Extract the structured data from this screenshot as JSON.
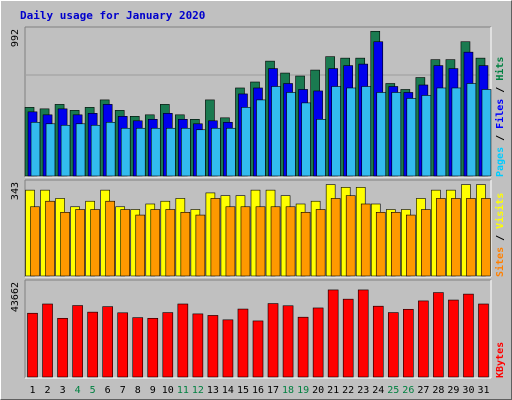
{
  "title": "Daily usage for January 2020",
  "chart_data": [
    {
      "type": "bar",
      "categories": [
        "1",
        "2",
        "3",
        "4",
        "5",
        "6",
        "7",
        "8",
        "9",
        "10",
        "11",
        "12",
        "13",
        "14",
        "15",
        "16",
        "17",
        "18",
        "19",
        "20",
        "21",
        "22",
        "23",
        "24",
        "25",
        "26",
        "27",
        "28",
        "29",
        "30",
        "31"
      ],
      "weekend_days": [
        "4",
        "5",
        "11",
        "12",
        "18",
        "19",
        "25",
        "26"
      ],
      "ymax_label": "992",
      "ylim": [
        0,
        992
      ],
      "legend": [
        {
          "name": "Pages",
          "color": "#00ccff"
        },
        {
          "name": "Files",
          "color": "#0000ff"
        },
        {
          "name": "Hits",
          "color": "#008040"
        }
      ],
      "series": [
        {
          "name": "Hits",
          "color": "#1a7a50",
          "values": [
            460,
            450,
            480,
            440,
            460,
            510,
            440,
            400,
            410,
            480,
            410,
            380,
            510,
            390,
            590,
            630,
            770,
            690,
            670,
            710,
            800,
            790,
            790,
            970,
            620,
            580,
            660,
            780,
            780,
            900,
            790
          ]
        },
        {
          "name": "Files",
          "color": "#0000ee",
          "values": [
            430,
            410,
            450,
            410,
            420,
            480,
            400,
            370,
            380,
            420,
            380,
            350,
            370,
            360,
            550,
            590,
            720,
            620,
            580,
            570,
            720,
            740,
            750,
            900,
            600,
            560,
            610,
            740,
            720,
            830,
            740
          ]
        },
        {
          "name": "Pages",
          "color": "#33bbee",
          "values": [
            360,
            350,
            340,
            350,
            340,
            360,
            320,
            320,
            320,
            320,
            320,
            310,
            320,
            320,
            460,
            510,
            600,
            560,
            490,
            380,
            600,
            590,
            600,
            560,
            560,
            520,
            540,
            590,
            590,
            620,
            580
          ]
        }
      ]
    },
    {
      "type": "bar",
      "categories": [
        "1",
        "2",
        "3",
        "4",
        "5",
        "6",
        "7",
        "8",
        "9",
        "10",
        "11",
        "12",
        "13",
        "14",
        "15",
        "16",
        "17",
        "18",
        "19",
        "20",
        "21",
        "22",
        "23",
        "24",
        "25",
        "26",
        "27",
        "28",
        "29",
        "30",
        "31"
      ],
      "ymax_label": "343",
      "ylim": [
        0,
        343
      ],
      "legend": [
        {
          "name": "Sites",
          "color": "#ff8000"
        },
        {
          "name": "Visits",
          "color": "#ffff00"
        }
      ],
      "series": [
        {
          "name": "Visits",
          "color": "#ffff00",
          "values": [
            310,
            310,
            280,
            250,
            270,
            310,
            250,
            240,
            260,
            270,
            280,
            240,
            300,
            290,
            290,
            310,
            310,
            290,
            260,
            270,
            330,
            320,
            320,
            260,
            240,
            240,
            280,
            310,
            310,
            330,
            330
          ]
        },
        {
          "name": "Sites",
          "color": "#ff9900",
          "values": [
            250,
            270,
            230,
            240,
            240,
            270,
            240,
            220,
            240,
            240,
            230,
            220,
            280,
            250,
            250,
            250,
            250,
            250,
            230,
            240,
            280,
            290,
            260,
            230,
            230,
            220,
            240,
            280,
            280,
            280,
            280
          ]
        }
      ]
    },
    {
      "type": "bar",
      "categories": [
        "1",
        "2",
        "3",
        "4",
        "5",
        "6",
        "7",
        "8",
        "9",
        "10",
        "11",
        "12",
        "13",
        "14",
        "15",
        "16",
        "17",
        "18",
        "19",
        "20",
        "21",
        "22",
        "23",
        "24",
        "25",
        "26",
        "27",
        "28",
        "29",
        "30",
        "31"
      ],
      "ymax_label": "43662",
      "ylim": [
        0,
        43662
      ],
      "legend": [
        {
          "name": "KBytes",
          "color": "#ff0000"
        }
      ],
      "series": [
        {
          "name": "KBytes",
          "color": "#ff0000",
          "values": [
            29000,
            33200,
            26700,
            32500,
            29500,
            32000,
            29200,
            27000,
            26700,
            29300,
            33200,
            28700,
            28000,
            26000,
            30900,
            25500,
            33400,
            32400,
            27200,
            31400,
            39600,
            35400,
            39600,
            32200,
            29300,
            30800,
            34600,
            38400,
            35000,
            37700,
            33200
          ]
        }
      ]
    }
  ]
}
